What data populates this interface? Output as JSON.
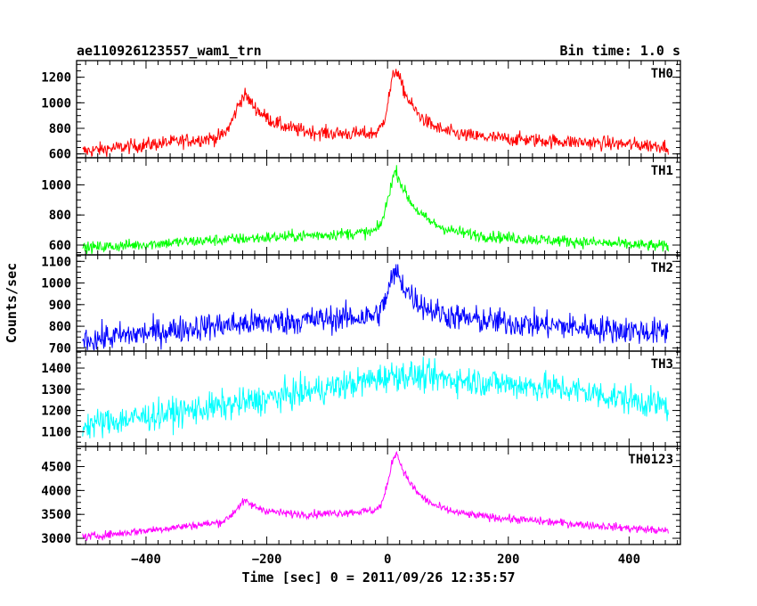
{
  "title_left": "ae110926123557_wam1_trn",
  "title_right": "Bin time: 1.0 s",
  "xlabel": "Time [sec] 0 = 2011/09/26 12:35:57",
  "ylabel": "Counts/sec",
  "chart_data": {
    "type": "line",
    "x_range": [
      -515,
      485
    ],
    "x_ticks": [
      -400,
      -200,
      0,
      200,
      400
    ],
    "x_tick_labels": [
      "−400",
      "−200",
      "0",
      "200",
      "400"
    ],
    "x_data_range": [
      -505,
      465
    ],
    "panels": [
      {
        "name": "TH0",
        "color": "#ff0000",
        "ylim": [
          570,
          1330
        ],
        "yticks": [
          600,
          800,
          1000,
          1200
        ],
        "baseline": [
          [
            -505,
            620
          ],
          [
            -300,
            720
          ],
          [
            0,
            760
          ],
          [
            465,
            660
          ]
        ],
        "peaks": [
          {
            "t": -235,
            "amp": 330,
            "w": 28
          },
          {
            "t": 15,
            "amp": 500,
            "w": 20
          }
        ],
        "noise": 40
      },
      {
        "name": "TH1",
        "color": "#00ff00",
        "ylim": [
          535,
          1180
        ],
        "yticks": [
          600,
          800,
          1000
        ],
        "baseline": [
          [
            -505,
            580
          ],
          [
            -300,
            630
          ],
          [
            0,
            690
          ],
          [
            465,
            590
          ]
        ],
        "peaks": [
          {
            "t": 15,
            "amp": 400,
            "w": 22
          }
        ],
        "noise": 28
      },
      {
        "name": "TH2",
        "color": "#0000ff",
        "ylim": [
          685,
          1130
        ],
        "yticks": [
          700,
          800,
          900,
          1000,
          1100
        ],
        "baseline": [
          [
            -505,
            735
          ],
          [
            -300,
            800
          ],
          [
            0,
            850
          ],
          [
            465,
            770
          ]
        ],
        "peaks": [
          {
            "t": 15,
            "amp": 200,
            "w": 22
          }
        ],
        "noise": 45
      },
      {
        "name": "TH3",
        "color": "#00ffff",
        "ylim": [
          1030,
          1480
        ],
        "yticks": [
          1100,
          1200,
          1300,
          1400
        ],
        "baseline": [
          [
            -505,
            1130
          ],
          [
            -250,
            1230
          ],
          [
            -50,
            1330
          ],
          [
            15,
            1370
          ],
          [
            300,
            1300
          ],
          [
            465,
            1220
          ]
        ],
        "peaks": [],
        "noise": 50
      },
      {
        "name": "TH0123",
        "color": "#ff00ff",
        "ylim": [
          2870,
          4920
        ],
        "yticks": [
          3000,
          3500,
          4000,
          4500
        ],
        "baseline": [
          [
            -505,
            3020
          ],
          [
            -300,
            3300
          ],
          [
            0,
            3600
          ],
          [
            465,
            3150
          ]
        ],
        "peaks": [
          {
            "t": -235,
            "amp": 400,
            "w": 28
          },
          {
            "t": 15,
            "amp": 1200,
            "w": 20
          }
        ],
        "noise": 60
      }
    ]
  }
}
